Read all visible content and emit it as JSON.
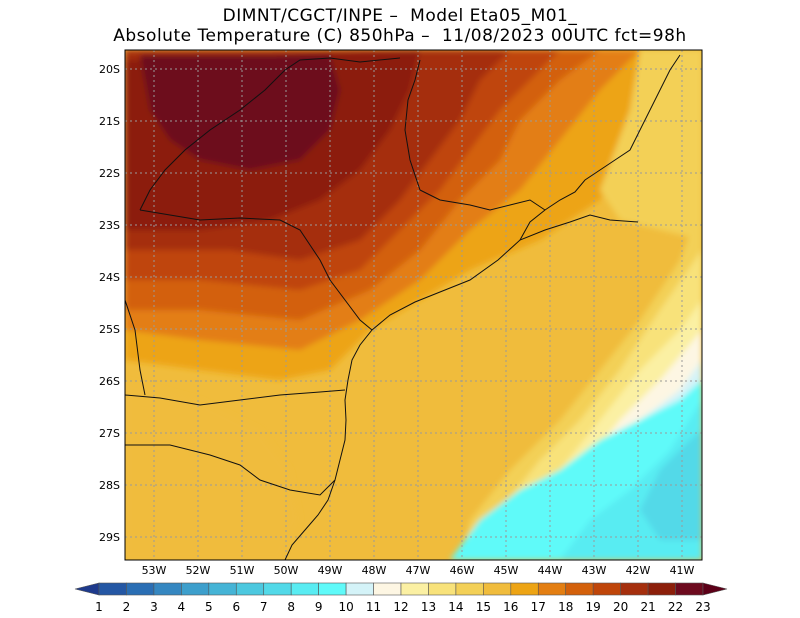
{
  "header": {
    "line1": "DIMNT/CGCT/INPE –  Model Eta05_M01_",
    "line2": "Absolute Temperature (C) 850hPa –  11/08/2023 00UTC fct=98h"
  },
  "map": {
    "lat_labels": [
      "20S",
      "21S",
      "22S",
      "23S",
      "24S",
      "25S",
      "26S",
      "27S",
      "28S",
      "29S"
    ],
    "lon_labels": [
      "53W",
      "52W",
      "51W",
      "50W",
      "49W",
      "48W",
      "47W",
      "46W",
      "45W",
      "44W",
      "43W",
      "42W",
      "41W"
    ]
  },
  "colorbar": {
    "labels": [
      "1",
      "2",
      "3",
      "4",
      "5",
      "6",
      "7",
      "8",
      "9",
      "10",
      "11",
      "12",
      "13",
      "14",
      "15",
      "16",
      "17",
      "18",
      "19",
      "20",
      "21",
      "22",
      "23"
    ],
    "colors": [
      "#1e3a8c",
      "#2457a4",
      "#2a6eb4",
      "#3587c1",
      "#3d9fcc",
      "#45b4d6",
      "#4cc8df",
      "#52d9e8",
      "#59ecf2",
      "#5ffaf9",
      "#d4f3f8",
      "#fdf6e3",
      "#fbf0a3",
      "#f8e27a",
      "#f3d057",
      "#f0bc3c",
      "#eda414",
      "#e37e12",
      "#d3600b",
      "#bf4509",
      "#a52f0d",
      "#8c1f0a",
      "#6d0a1e",
      "#5c0018"
    ]
  }
}
